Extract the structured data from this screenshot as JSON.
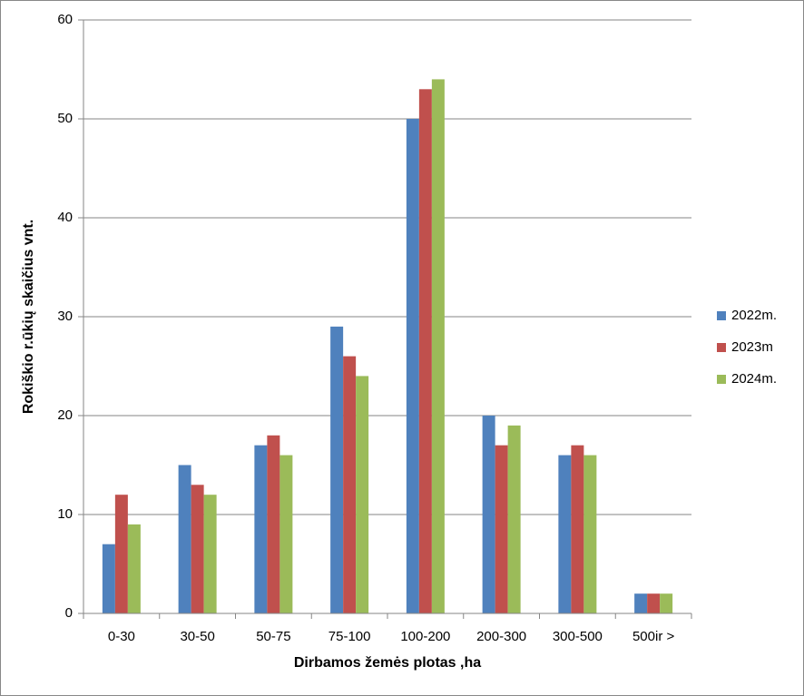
{
  "chart_data": {
    "type": "bar",
    "y_label": "Rokiškio r.ūkių skaičius vnt.",
    "x_label": "Dirbamos žemės plotas ,ha",
    "categories": [
      "0-30",
      "30-50",
      "50-75",
      "75-100",
      "100-200",
      "200-300",
      "300-500",
      "500ir >"
    ],
    "series": [
      {
        "name": "2022m.",
        "color": "#4f81bd",
        "values": [
          7,
          15,
          17,
          29,
          50,
          20,
          16,
          2
        ]
      },
      {
        "name": "2023m",
        "color": "#c0504d",
        "values": [
          12,
          13,
          18,
          26,
          53,
          17,
          17,
          2
        ]
      },
      {
        "name": "2024m.",
        "color": "#9bbb59",
        "values": [
          9,
          12,
          16,
          24,
          54,
          19,
          16,
          2
        ]
      }
    ],
    "ylim": [
      0,
      60
    ],
    "yticks": [
      0,
      10,
      20,
      30,
      40,
      50,
      60
    ],
    "grid": true,
    "legend": "right"
  }
}
